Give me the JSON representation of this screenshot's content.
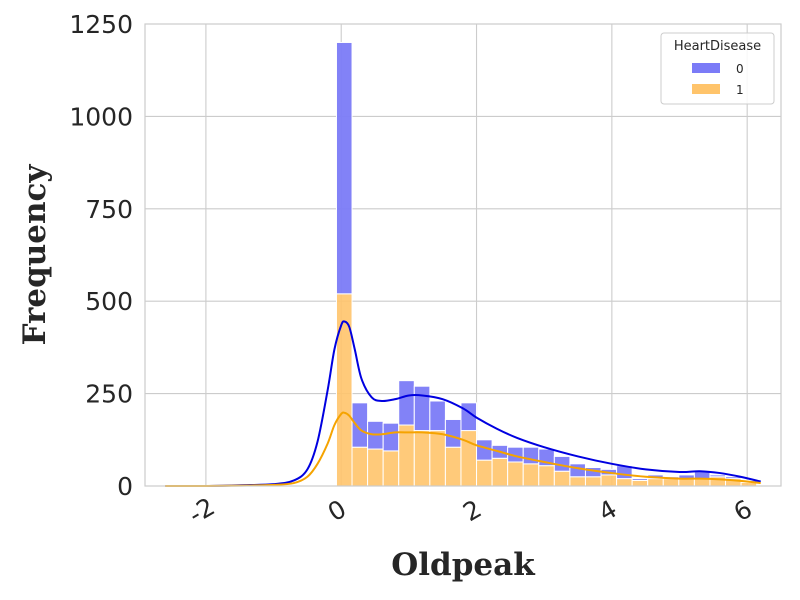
{
  "chart_data": {
    "type": "bar",
    "title": "",
    "xlabel": "Oldpeak",
    "ylabel": "Frequency",
    "xlim": [
      -2.9,
      6.5
    ],
    "ylim": [
      0,
      1250
    ],
    "xticks": [
      -2,
      0,
      2,
      4,
      6
    ],
    "yticks": [
      0,
      250,
      500,
      750,
      1000,
      1250
    ],
    "grid": true,
    "stacked": true,
    "legend": {
      "title": "HeartDisease",
      "position": "top-right"
    },
    "bin_width": 0.23,
    "bins_start": [
      -2.6,
      -2.37,
      -2.14,
      -1.91,
      -1.68,
      -1.45,
      -1.22,
      -0.99,
      -0.76,
      -0.53,
      -0.3,
      -0.07,
      0.16,
      0.39,
      0.62,
      0.85,
      1.08,
      1.31,
      1.54,
      1.77,
      2.0,
      2.23,
      2.46,
      2.69,
      2.92,
      3.15,
      3.38,
      3.61,
      3.84,
      4.07,
      4.3,
      4.53,
      4.76,
      4.99,
      5.22,
      5.45,
      5.68,
      5.91
    ],
    "series": [
      {
        "name": "1",
        "color": "#ffc46b",
        "values": [
          2,
          1,
          1,
          1,
          1,
          0,
          0,
          0,
          0,
          0,
          0,
          520,
          105,
          100,
          95,
          165,
          150,
          150,
          105,
          150,
          70,
          75,
          65,
          60,
          55,
          40,
          25,
          25,
          30,
          20,
          15,
          20,
          20,
          20,
          20,
          25,
          20,
          10
        ]
      },
      {
        "name": "0",
        "color": "#7b7bf7",
        "values": [
          0,
          0,
          0,
          0,
          0,
          0,
          0,
          0,
          0,
          0,
          0,
          680,
          120,
          75,
          75,
          120,
          120,
          80,
          75,
          75,
          55,
          35,
          40,
          45,
          45,
          40,
          35,
          25,
          15,
          35,
          5,
          10,
          5,
          10,
          20,
          5,
          5,
          5
        ]
      }
    ],
    "kde": [
      {
        "name": "0",
        "color": "#0000e0",
        "x": [
          -2.6,
          -2.0,
          -1.5,
          -1.0,
          -0.7,
          -0.5,
          -0.35,
          -0.2,
          -0.1,
          0.0,
          0.05,
          0.12,
          0.2,
          0.3,
          0.45,
          0.6,
          0.8,
          1.0,
          1.2,
          1.5,
          1.8,
          2.0,
          2.3,
          2.6,
          3.0,
          3.5,
          4.0,
          4.5,
          5.0,
          5.3,
          5.6,
          5.9,
          6.2
        ],
        "y": [
          0,
          0,
          2,
          5,
          15,
          45,
          120,
          260,
          370,
          435,
          445,
          430,
          370,
          290,
          240,
          230,
          235,
          245,
          245,
          235,
          210,
          185,
          155,
          130,
          105,
          80,
          60,
          45,
          38,
          40,
          35,
          25,
          12
        ]
      },
      {
        "name": "1",
        "color": "#f5a300",
        "x": [
          -2.6,
          -2.0,
          -1.5,
          -1.0,
          -0.7,
          -0.5,
          -0.35,
          -0.2,
          -0.1,
          0.0,
          0.05,
          0.12,
          0.2,
          0.3,
          0.45,
          0.6,
          0.8,
          1.0,
          1.2,
          1.5,
          1.8,
          2.0,
          2.3,
          2.6,
          3.0,
          3.5,
          4.0,
          4.5,
          5.0,
          5.3,
          5.6,
          5.9,
          6.2
        ],
        "y": [
          0,
          0,
          1,
          3,
          8,
          25,
          60,
          115,
          165,
          195,
          198,
          190,
          170,
          150,
          140,
          140,
          145,
          145,
          145,
          140,
          125,
          110,
          95,
          80,
          65,
          48,
          35,
          25,
          20,
          20,
          18,
          14,
          8
        ]
      }
    ]
  }
}
